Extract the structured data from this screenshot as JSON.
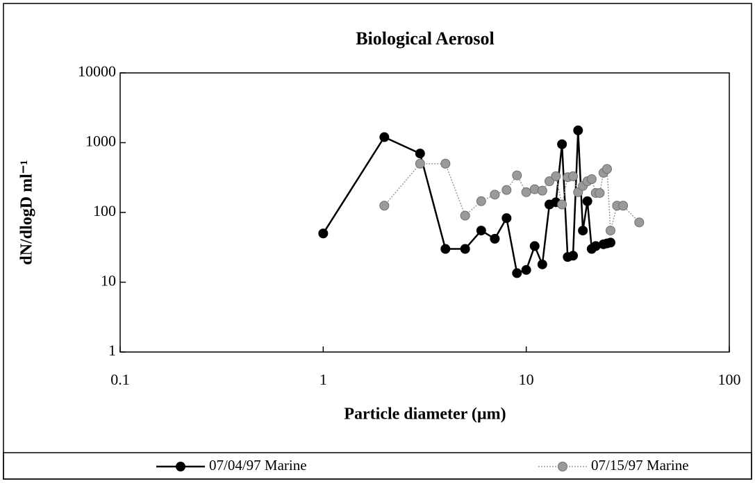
{
  "chart_data": {
    "type": "line",
    "title": "Biological Aerosol",
    "x_label": "Particle diameter (µm)",
    "y_label": "dN/dlogD ml⁻¹",
    "xscale": "log",
    "yscale": "log",
    "xlim": [
      0.1,
      100
    ],
    "ylim": [
      1,
      10000
    ],
    "xticks": [
      0.1,
      1,
      10,
      100
    ],
    "yticks": [
      1,
      10,
      100,
      1000,
      10000
    ],
    "legend": "bottom",
    "series": [
      {
        "name": "07/04/97 Marine",
        "color": "#000000",
        "marker": "circle",
        "line": "solid",
        "x": [
          1,
          2,
          3,
          4,
          5,
          6,
          7,
          8,
          9,
          10,
          11,
          12,
          13,
          14,
          15,
          16,
          17,
          18,
          19,
          20,
          21,
          22,
          24,
          25,
          26
        ],
        "values": [
          50,
          1200,
          700,
          30,
          30,
          55,
          42,
          83,
          13.5,
          15,
          33,
          18,
          130,
          140,
          950,
          23,
          24,
          1500,
          55,
          145,
          30,
          33,
          35,
          36,
          37
        ]
      },
      {
        "name": "07/15/97 Marine",
        "color": "#9a9a9a",
        "marker": "circle",
        "line": "dotted",
        "x": [
          2,
          3,
          4,
          5,
          6,
          7,
          8,
          9,
          10,
          11,
          12,
          13,
          14,
          15,
          16,
          17,
          18,
          19,
          20,
          21,
          22,
          23,
          24,
          25,
          26,
          28,
          30,
          36
        ],
        "values": [
          125,
          500,
          500,
          90,
          145,
          180,
          210,
          340,
          195,
          215,
          205,
          280,
          330,
          130,
          320,
          330,
          195,
          240,
          280,
          300,
          190,
          190,
          370,
          420,
          55,
          125,
          125,
          72
        ]
      }
    ]
  }
}
